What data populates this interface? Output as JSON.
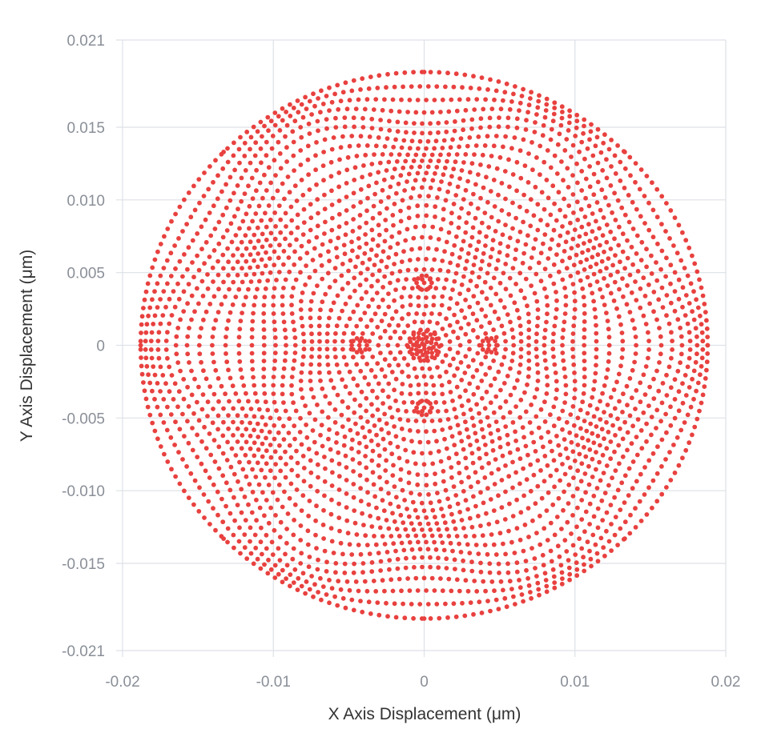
{
  "chart_data": {
    "type": "scatter",
    "title": "",
    "xlabel": "X Axis Displacement (μm)",
    "ylabel": "Y Axis Displacement (μm)",
    "xlim": [
      -0.02,
      0.02
    ],
    "ylim": [
      -0.021,
      0.021
    ],
    "x_ticks": [
      -0.02,
      -0.01,
      0,
      0.01,
      0.02
    ],
    "x_tick_labels": [
      "-0.02",
      "-0.01",
      "0",
      "0.01",
      "0.02"
    ],
    "y_ticks": [
      -0.021,
      -0.015,
      -0.01,
      -0.005,
      0,
      0.005,
      0.01,
      0.015,
      0.021
    ],
    "y_tick_labels": [
      "-0.021",
      "-0.015",
      "-0.010",
      "-0.005",
      "0",
      "0.005",
      "0.010",
      "0.015",
      "0.021"
    ],
    "grid": true,
    "legend": "none",
    "series": [
      {
        "color": "#e8413f",
        "shape": "spot-diagram",
        "approximate_radius": 0.0188,
        "center": [
          0,
          0
        ],
        "sample_points": [
          [
            0,
            0.0188
          ],
          [
            0,
            -0.0188
          ],
          [
            0.0188,
            0
          ],
          [
            -0.0188,
            0
          ],
          [
            0,
            0.0043
          ],
          [
            0,
            -0.0043
          ],
          [
            0.0043,
            0
          ],
          [
            -0.0043,
            0
          ],
          [
            0,
            0
          ],
          [
            0.0133,
            0.0133
          ],
          [
            -0.0133,
            0.0133
          ],
          [
            0.0133,
            -0.0133
          ],
          [
            -0.0133,
            -0.0133
          ]
        ]
      }
    ]
  }
}
